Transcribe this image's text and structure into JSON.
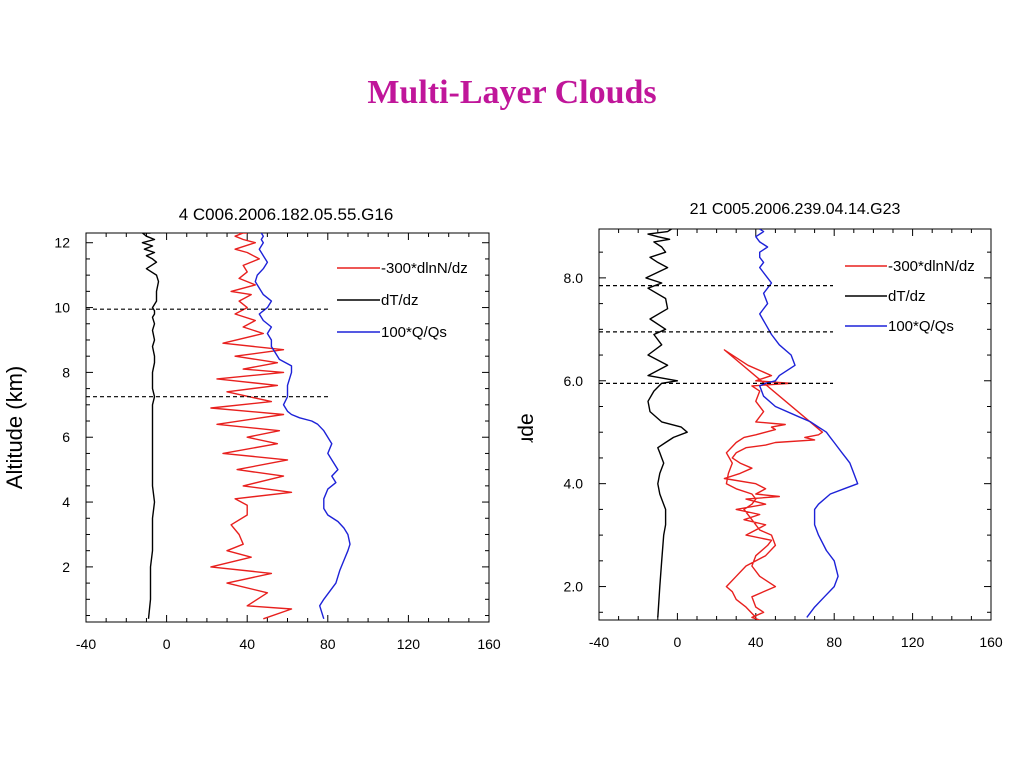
{
  "slide": {
    "title": "Multi-Layer Clouds",
    "title_color": "#c0169a"
  },
  "chart_data": [
    {
      "type": "line",
      "title": "4   C006.2006.182.05.55.G16",
      "ylabel": "Altitude (km)",
      "xlabel": "",
      "xlim": [
        -40,
        160
      ],
      "ylim": [
        0.3,
        12.3
      ],
      "xticks": [
        -40,
        0,
        40,
        80,
        120,
        160
      ],
      "xtick_labels": [
        "-40",
        "0",
        "40",
        "80",
        "120",
        "160"
      ],
      "yticks": [
        2,
        4,
        6,
        8,
        10,
        12
      ],
      "ytick_labels": [
        "2",
        "4",
        "6",
        "8",
        "10",
        "12"
      ],
      "legend_placement": "top-right",
      "hlines": [
        9.95,
        7.25
      ],
      "series": [
        {
          "name": "-300*dlnN/dz",
          "color": "#e8201e",
          "x": [
            48,
            62,
            40,
            50,
            30,
            52,
            22,
            42,
            30,
            38,
            36,
            32,
            40,
            40,
            34,
            62,
            38,
            58,
            35,
            60,
            28,
            55,
            40,
            56,
            25,
            58,
            22,
            52,
            30,
            55,
            25,
            58,
            38,
            55,
            34,
            58,
            28,
            48,
            38,
            44,
            34,
            40,
            36,
            42,
            32,
            44,
            36,
            40,
            38,
            46,
            40,
            34,
            44,
            38,
            34,
            38,
            36,
            40
          ],
          "y": [
            0.4,
            0.7,
            0.8,
            1.2,
            1.5,
            1.8,
            2.0,
            2.3,
            2.5,
            2.7,
            3.0,
            3.3,
            3.6,
            3.9,
            4.1,
            4.3,
            4.5,
            4.8,
            5.0,
            5.3,
            5.5,
            5.8,
            6.0,
            6.2,
            6.4,
            6.7,
            6.9,
            7.1,
            7.4,
            7.6,
            7.8,
            8.0,
            8.1,
            8.3,
            8.5,
            8.7,
            8.9,
            9.2,
            9.4,
            9.6,
            9.8,
            10.0,
            10.2,
            10.4,
            10.5,
            10.7,
            10.9,
            11.1,
            11.3,
            11.5,
            11.7,
            11.8,
            12.0,
            12.1,
            12.2,
            12.3,
            12.3,
            12.3
          ]
        },
        {
          "name": "dT/dz",
          "color": "#000000",
          "x": [
            -9,
            -8,
            -8,
            -8,
            -7,
            -7,
            -7,
            -6,
            -7,
            -7,
            -7,
            -7,
            -7,
            -7,
            -6,
            -7,
            -7,
            -6,
            -6,
            -7,
            -6,
            -7,
            -6,
            -7,
            -6,
            -6,
            -7,
            -5,
            -5,
            -4,
            -5,
            -10,
            -5,
            -7,
            -10,
            -6,
            -11,
            -7,
            -12,
            -6,
            -10,
            -12,
            -8
          ],
          "y": [
            0.4,
            1.0,
            1.5,
            2.0,
            2.5,
            3.0,
            3.5,
            4.0,
            4.5,
            5.0,
            5.5,
            6.0,
            6.5,
            7.0,
            7.25,
            7.5,
            8.0,
            8.3,
            8.5,
            8.8,
            9.0,
            9.3,
            9.5,
            9.7,
            9.8,
            9.9,
            10.0,
            10.2,
            10.5,
            10.8,
            11.0,
            11.2,
            11.4,
            11.5,
            11.6,
            11.7,
            11.8,
            11.9,
            12.0,
            12.1,
            12.2,
            12.3,
            12.3
          ]
        },
        {
          "name": "100*Q/Qs",
          "color": "#1d22d8",
          "x": [
            78,
            76,
            78,
            84,
            86,
            88,
            90,
            91,
            90,
            88,
            85,
            80,
            78,
            78,
            80,
            84,
            82,
            85,
            82,
            80,
            82,
            80,
            78,
            75,
            72,
            66,
            62,
            60,
            58,
            60,
            60,
            62,
            62,
            56,
            54,
            52,
            52,
            50,
            52,
            48,
            46,
            48,
            50,
            52,
            48,
            46,
            44,
            45,
            48,
            50,
            48,
            46,
            48,
            47,
            48,
            47
          ],
          "y": [
            0.4,
            0.8,
            1.0,
            1.5,
            1.9,
            2.2,
            2.5,
            2.7,
            3.0,
            3.2,
            3.4,
            3.6,
            3.8,
            4.1,
            4.4,
            4.6,
            4.8,
            5.0,
            5.3,
            5.5,
            5.8,
            6.0,
            6.2,
            6.4,
            6.5,
            6.6,
            6.7,
            6.8,
            7.0,
            7.25,
            7.6,
            8.0,
            8.2,
            8.4,
            8.6,
            8.8,
            9.0,
            9.2,
            9.4,
            9.6,
            9.8,
            9.9,
            10.0,
            10.2,
            10.4,
            10.6,
            10.8,
            11.0,
            11.2,
            11.4,
            11.6,
            11.8,
            12.0,
            12.1,
            12.2,
            12.3
          ]
        }
      ]
    },
    {
      "type": "line",
      "title": "21   C005.2006.239.04.14.G23",
      "ylabel": "Altitude (km)",
      "xlabel": "",
      "xlim": [
        -40,
        160
      ],
      "ylim": [
        1.35,
        8.95
      ],
      "xticks": [
        -40,
        0,
        40,
        80,
        120,
        160
      ],
      "xtick_labels": [
        "-40",
        "0",
        "40",
        "80",
        "120",
        "160"
      ],
      "yticks": [
        2.0,
        4.0,
        6.0,
        8.0
      ],
      "ytick_labels": [
        "2.0",
        "4.0",
        "6.0",
        "8.0"
      ],
      "legend_placement": "top-right",
      "hlines": [
        7.85,
        6.95,
        5.95
      ],
      "series": [
        {
          "name": "-300*dlnN/dz",
          "color": "#e8201e",
          "x": [
            40,
            35,
            30,
            28,
            25,
            30,
            35,
            45,
            50,
            48,
            42,
            38,
            34,
            38,
            40,
            38,
            30,
            25,
            26,
            28,
            25,
            30,
            34,
            40,
            45,
            50,
            48,
            55,
            40,
            44,
            40,
            42,
            38,
            58,
            40,
            48,
            36,
            24,
            74,
            72,
            65,
            70,
            50,
            45,
            35,
            30,
            28,
            32,
            38,
            32,
            24,
            40,
            45,
            40,
            52,
            35,
            45,
            30,
            42,
            34,
            45,
            35,
            48,
            46,
            40,
            38,
            42,
            50,
            38,
            40,
            44,
            38,
            42
          ],
          "y": [
            1.4,
            1.6,
            1.75,
            1.9,
            2.0,
            2.2,
            2.4,
            2.6,
            2.8,
            3.0,
            3.1,
            3.3,
            3.5,
            3.6,
            3.7,
            3.8,
            3.9,
            4.0,
            4.2,
            4.4,
            4.6,
            4.8,
            4.9,
            4.95,
            5.0,
            5.05,
            5.1,
            5.15,
            5.2,
            5.4,
            5.6,
            5.8,
            5.9,
            5.95,
            6.0,
            6.1,
            6.3,
            6.6,
            5.0,
            4.95,
            4.9,
            4.85,
            4.8,
            4.75,
            4.7,
            4.6,
            4.5,
            4.4,
            4.3,
            4.2,
            4.1,
            4.0,
            3.9,
            3.8,
            3.75,
            3.7,
            3.6,
            3.5,
            3.4,
            3.3,
            3.2,
            3.0,
            2.9,
            2.8,
            2.6,
            2.4,
            2.2,
            2.0,
            1.8,
            1.6,
            1.5,
            1.4,
            1.35
          ]
        },
        {
          "name": "dT/dz",
          "color": "#000000",
          "x": [
            -10,
            -9,
            -8,
            -7,
            -6,
            -6,
            -8,
            -9,
            -10,
            -9,
            -7,
            -8,
            -9,
            -10,
            -6,
            -2,
            5,
            2,
            -8,
            -14,
            -15,
            -12,
            -8,
            0,
            -15,
            -5,
            -15,
            -8,
            -12,
            -6,
            -14,
            -5,
            -6,
            -15,
            -8,
            -16,
            -5,
            -10,
            -14,
            -6,
            -8,
            -12,
            -4,
            -10,
            -15,
            -5,
            -3
          ],
          "y": [
            1.4,
            2.0,
            2.5,
            3.0,
            3.2,
            3.5,
            3.7,
            3.8,
            4.0,
            4.2,
            4.4,
            4.5,
            4.6,
            4.7,
            4.8,
            4.9,
            5.0,
            5.1,
            5.2,
            5.4,
            5.6,
            5.8,
            5.95,
            6.0,
            6.1,
            6.3,
            6.5,
            6.7,
            6.9,
            7.0,
            7.2,
            7.4,
            7.6,
            7.8,
            7.9,
            8.0,
            8.2,
            8.3,
            8.4,
            8.5,
            8.6,
            8.7,
            8.75,
            8.8,
            8.85,
            8.9,
            8.95
          ]
        },
        {
          "name": "100*Q/Qs",
          "color": "#1d22d8",
          "x": [
            66,
            70,
            75,
            80,
            82,
            80,
            76,
            72,
            70,
            70,
            72,
            78,
            85,
            92,
            90,
            88,
            86,
            84,
            80,
            78,
            76,
            74,
            72,
            68,
            62,
            50,
            44,
            42,
            45,
            50,
            52,
            60,
            58,
            52,
            48,
            45,
            42,
            46,
            44,
            48,
            46,
            42,
            44,
            42,
            42,
            46,
            42,
            40,
            44,
            42
          ],
          "y": [
            1.4,
            1.6,
            1.8,
            2.0,
            2.2,
            2.5,
            2.7,
            3.0,
            3.2,
            3.5,
            3.6,
            3.8,
            3.9,
            4.0,
            4.2,
            4.4,
            4.5,
            4.6,
            4.8,
            4.9,
            5.0,
            5.05,
            5.1,
            5.2,
            5.3,
            5.5,
            5.7,
            5.9,
            5.95,
            6.0,
            6.1,
            6.3,
            6.5,
            6.7,
            6.9,
            7.1,
            7.3,
            7.5,
            7.7,
            7.9,
            8.0,
            8.2,
            8.3,
            8.4,
            8.5,
            8.6,
            8.7,
            8.8,
            8.9,
            8.95
          ]
        }
      ]
    }
  ]
}
